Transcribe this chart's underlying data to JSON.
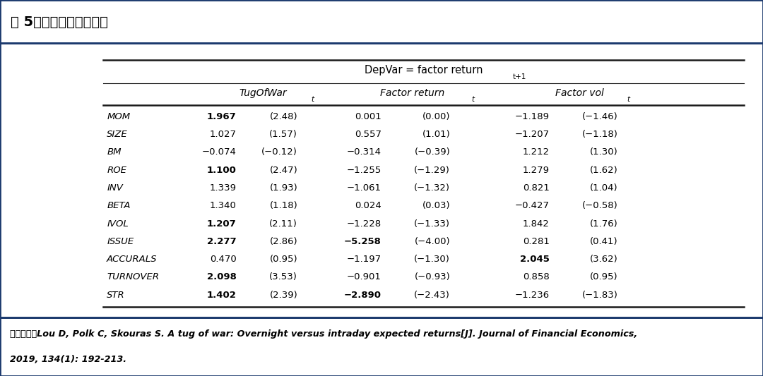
{
  "title": "表 5：预测收盈因子回报",
  "rows": [
    {
      "factor": "MOM",
      "tow_coef": "1.967",
      "tow_coef_bold": true,
      "tow_t": "(2.48)",
      "fr_coef": "0.001",
      "fr_coef_bold": false,
      "fr_t": "(0.00)",
      "fv_coef": "−1.189",
      "fv_coef_bold": false,
      "fv_t": "(−1.46)"
    },
    {
      "factor": "SIZE",
      "tow_coef": "1.027",
      "tow_coef_bold": false,
      "tow_t": "(1.57)",
      "fr_coef": "0.557",
      "fr_coef_bold": false,
      "fr_t": "(1.01)",
      "fv_coef": "−1.207",
      "fv_coef_bold": false,
      "fv_t": "(−1.18)"
    },
    {
      "factor": "BM",
      "tow_coef": "−0.074",
      "tow_coef_bold": false,
      "tow_t": "(−0.12)",
      "fr_coef": "−0.314",
      "fr_coef_bold": false,
      "fr_t": "(−0.39)",
      "fv_coef": "1.212",
      "fv_coef_bold": false,
      "fv_t": "(1.30)"
    },
    {
      "factor": "ROE",
      "tow_coef": "1.100",
      "tow_coef_bold": true,
      "tow_t": "(2.47)",
      "fr_coef": "−1.255",
      "fr_coef_bold": false,
      "fr_t": "(−1.29)",
      "fv_coef": "1.279",
      "fv_coef_bold": false,
      "fv_t": "(1.62)"
    },
    {
      "factor": "INV",
      "tow_coef": "1.339",
      "tow_coef_bold": false,
      "tow_t": "(1.93)",
      "fr_coef": "−1.061",
      "fr_coef_bold": false,
      "fr_t": "(−1.32)",
      "fv_coef": "0.821",
      "fv_coef_bold": false,
      "fv_t": "(1.04)"
    },
    {
      "factor": "BETA",
      "tow_coef": "1.340",
      "tow_coef_bold": false,
      "tow_t": "(1.18)",
      "fr_coef": "0.024",
      "fr_coef_bold": false,
      "fr_t": "(0.03)",
      "fv_coef": "−0.427",
      "fv_coef_bold": false,
      "fv_t": "(−0.58)"
    },
    {
      "factor": "IVOL",
      "tow_coef": "1.207",
      "tow_coef_bold": true,
      "tow_t": "(2.11)",
      "fr_coef": "−1.228",
      "fr_coef_bold": false,
      "fr_t": "(−1.33)",
      "fv_coef": "1.842",
      "fv_coef_bold": false,
      "fv_t": "(1.76)"
    },
    {
      "factor": "ISSUE",
      "tow_coef": "2.277",
      "tow_coef_bold": true,
      "tow_t": "(2.86)",
      "fr_coef": "−5.258",
      "fr_coef_bold": true,
      "fr_t": "(−4.00)",
      "fv_coef": "0.281",
      "fv_coef_bold": false,
      "fv_t": "(0.41)"
    },
    {
      "factor": "ACCURALS",
      "tow_coef": "0.470",
      "tow_coef_bold": false,
      "tow_t": "(0.95)",
      "fr_coef": "−1.197",
      "fr_coef_bold": false,
      "fr_t": "(−1.30)",
      "fv_coef": "2.045",
      "fv_coef_bold": true,
      "fv_t": "(3.62)"
    },
    {
      "factor": "TURNOVER",
      "tow_coef": "2.098",
      "tow_coef_bold": true,
      "tow_t": "(3.53)",
      "fr_coef": "−0.901",
      "fr_coef_bold": false,
      "fr_t": "(−0.93)",
      "fv_coef": "0.858",
      "fv_coef_bold": false,
      "fv_t": "(0.95)"
    },
    {
      "factor": "STR",
      "tow_coef": "1.402",
      "tow_coef_bold": true,
      "tow_t": "(2.39)",
      "fr_coef": "−2.890",
      "fr_coef_bold": true,
      "fr_t": "(−2.43)",
      "fv_coef": "−1.236",
      "fv_coef_bold": false,
      "fv_t": "(−1.83)"
    }
  ],
  "footnote_line1": "资料来源：Lou D, Polk C, Skouras S. A tug of war: Overnight versus intraday expected returns[J]. Journal of Financial Economics,",
  "footnote_line2": "2019, 134(1): 192-213.",
  "bg_color": "#ffffff",
  "title_bg": "#ccd3e0",
  "border_color": "#1c3a6e",
  "footnote_bg": "#e8ecf3"
}
